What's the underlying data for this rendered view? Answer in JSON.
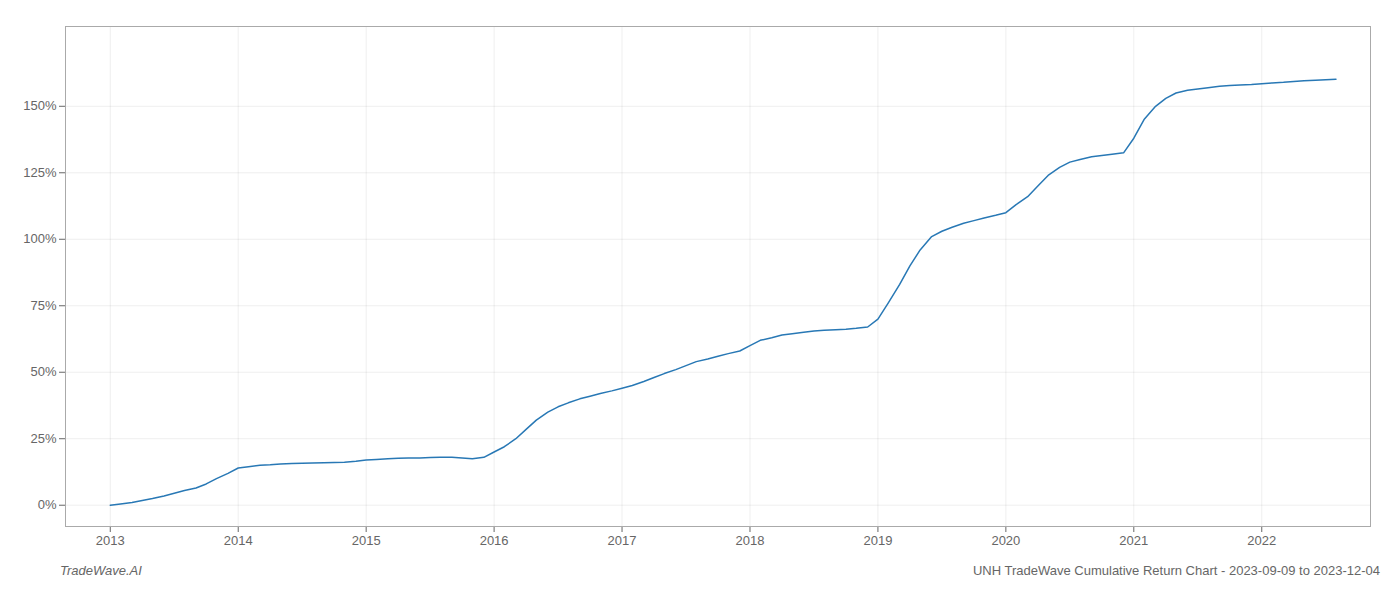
{
  "chart_data": {
    "type": "line",
    "x": [
      2013.0,
      2013.08,
      2013.17,
      2013.25,
      2013.33,
      2013.42,
      2013.5,
      2013.58,
      2013.67,
      2013.75,
      2013.83,
      2013.92,
      2014.0,
      2014.08,
      2014.17,
      2014.25,
      2014.33,
      2014.42,
      2014.5,
      2014.58,
      2014.67,
      2014.75,
      2014.83,
      2014.92,
      2015.0,
      2015.08,
      2015.17,
      2015.25,
      2015.33,
      2015.42,
      2015.5,
      2015.58,
      2015.67,
      2015.75,
      2015.83,
      2015.92,
      2016.0,
      2016.08,
      2016.17,
      2016.25,
      2016.33,
      2016.42,
      2016.5,
      2016.58,
      2016.67,
      2016.75,
      2016.83,
      2016.92,
      2017.0,
      2017.08,
      2017.17,
      2017.25,
      2017.33,
      2017.42,
      2017.5,
      2017.58,
      2017.67,
      2017.75,
      2017.83,
      2017.92,
      2018.0,
      2018.08,
      2018.17,
      2018.25,
      2018.33,
      2018.42,
      2018.5,
      2018.58,
      2018.67,
      2018.75,
      2018.83,
      2018.92,
      2019.0,
      2019.08,
      2019.17,
      2019.25,
      2019.33,
      2019.42,
      2019.5,
      2019.58,
      2019.67,
      2019.75,
      2019.83,
      2019.92,
      2020.0,
      2020.08,
      2020.17,
      2020.25,
      2020.33,
      2020.42,
      2020.5,
      2020.58,
      2020.67,
      2020.75,
      2020.83,
      2020.92,
      2021.0,
      2021.08,
      2021.17,
      2021.25,
      2021.33,
      2021.42,
      2021.5,
      2021.58,
      2021.67,
      2021.75,
      2021.83,
      2021.92,
      2022.0,
      2022.08,
      2022.17,
      2022.25,
      2022.33,
      2022.42,
      2022.5,
      2022.58
    ],
    "values": [
      0.0,
      0.5,
      1.0,
      1.8,
      2.5,
      3.5,
      4.5,
      5.5,
      6.5,
      8.0,
      10.0,
      12.0,
      14.0,
      14.5,
      15.0,
      15.2,
      15.5,
      15.7,
      15.8,
      15.9,
      16.0,
      16.1,
      16.2,
      16.5,
      17.0,
      17.2,
      17.5,
      17.7,
      17.8,
      17.8,
      17.9,
      18.0,
      18.0,
      17.8,
      17.5,
      18.0,
      20.0,
      22.0,
      25.0,
      28.5,
      32.0,
      35.0,
      37.0,
      38.5,
      40.0,
      41.0,
      42.0,
      43.0,
      44.0,
      45.0,
      46.5,
      48.0,
      49.5,
      51.0,
      52.5,
      54.0,
      55.0,
      56.0,
      57.0,
      58.0,
      60.0,
      62.0,
      63.0,
      64.0,
      64.5,
      65.0,
      65.5,
      65.8,
      66.0,
      66.2,
      66.5,
      67.0,
      70.0,
      76.0,
      83.0,
      90.0,
      96.0,
      101.0,
      103.0,
      104.5,
      106.0,
      107.0,
      108.0,
      109.0,
      110.0,
      113.0,
      116.0,
      120.0,
      124.0,
      127.0,
      129.0,
      130.0,
      131.0,
      131.5,
      132.0,
      132.5,
      138.0,
      145.0,
      150.0,
      153.0,
      155.0,
      156.0,
      156.5,
      157.0,
      157.5,
      157.8,
      158.0,
      158.2,
      158.5,
      158.8,
      159.0,
      159.3,
      159.6,
      159.8,
      160.0,
      160.2
    ],
    "color": "#2878b5",
    "xlim": [
      2012.65,
      2022.85
    ],
    "xticks": [
      2013,
      2014,
      2015,
      2016,
      2017,
      2018,
      2019,
      2020,
      2021,
      2022
    ],
    "ylim": [
      -8,
      180
    ],
    "yticks": [
      {
        "value": 0,
        "label": "0%"
      },
      {
        "value": 25,
        "label": "25%"
      },
      {
        "value": 50,
        "label": "50%"
      },
      {
        "value": 75,
        "label": "75%"
      },
      {
        "value": 100,
        "label": "100%"
      },
      {
        "value": 125,
        "label": "125%"
      },
      {
        "value": 150,
        "label": "150%"
      }
    ],
    "grid": true,
    "annotations": [
      "TradeWave.AI",
      "UNH TradeWave Cumulative Return Chart - 2023-09-09 to 2023-12-04"
    ]
  }
}
